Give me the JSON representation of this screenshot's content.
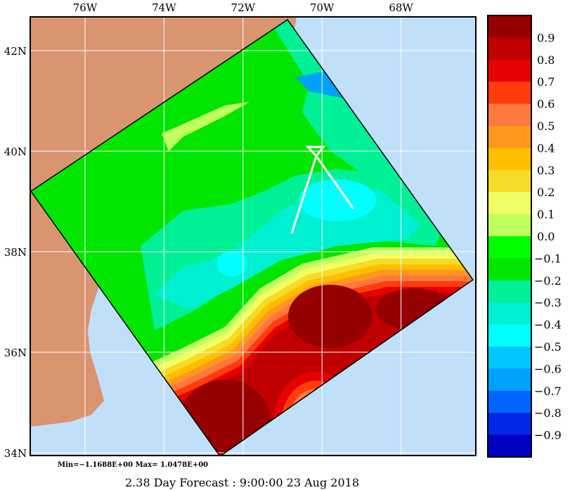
{
  "map": {
    "lon_labels": [
      "76W",
      "74W",
      "72W",
      "70W",
      "68W"
    ],
    "lon_values": [
      -76,
      -74,
      -72,
      -70,
      -68
    ],
    "lat_labels": [
      "42N",
      "40N",
      "38N",
      "36N",
      "34N"
    ],
    "lat_values": [
      42,
      40,
      38,
      36,
      34
    ],
    "land_color": "#d99470",
    "ocean_color": "#c0e0fa"
  },
  "colorbar": {
    "labels": [
      "0.9",
      "0.8",
      "0.7",
      "0.6",
      "0.5",
      "0.4",
      "0.3",
      "0.2",
      "0.1",
      "0.0",
      "−0.1",
      "−0.2",
      "−0.3",
      "−0.4",
      "−0.5",
      "−0.6",
      "−0.7",
      "−0.8",
      "−0.9"
    ],
    "colors": [
      "#960000",
      "#c00000",
      "#e60000",
      "#ff3c0a",
      "#ff7840",
      "#ff961e",
      "#ffbe00",
      "#f5dc28",
      "#f0ff64",
      "#c0ff60",
      "#00ff00",
      "#00e600",
      "#00f096",
      "#00f0d2",
      "#00ffff",
      "#00c8ff",
      "#00a0ff",
      "#0064ff",
      "#0028e6",
      "#0000c0"
    ]
  },
  "stats": "Min=−1.1688E+00  Max= 1.0478E+00",
  "title": "2.38 Day Forecast :  9:00:00  23 Aug 2018"
}
